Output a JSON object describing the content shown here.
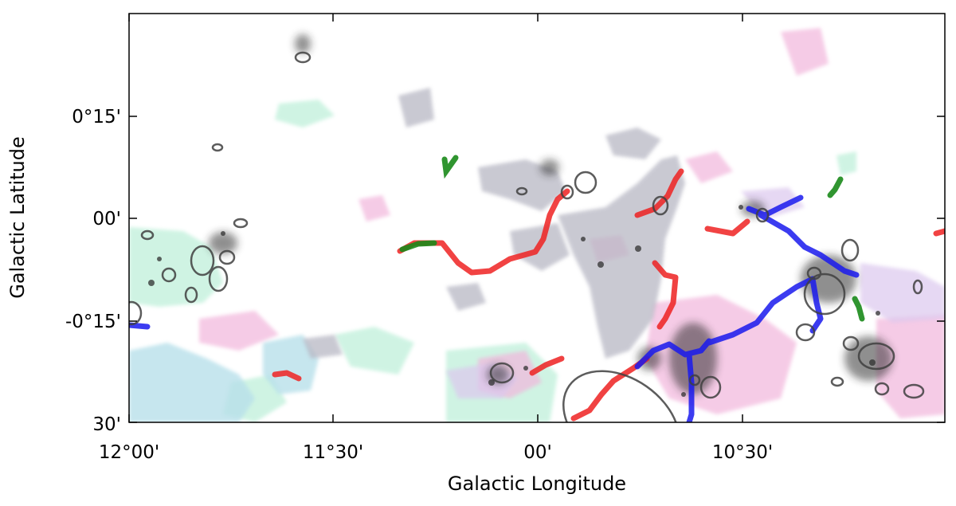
{
  "figure": {
    "xlabel": "Galactic Longitude",
    "ylabel": "Galactic Latitude",
    "x_ticks": [
      "12°00'",
      "11°30'",
      "00'",
      "10°30'"
    ],
    "y_ticks": [
      "0°15'",
      "00'",
      "-0°15'",
      "30'"
    ]
  },
  "colors": {
    "filament_red": "#ee2222",
    "filament_blue": "#1a1aee",
    "filament_green": "#1a8a1a",
    "clump_outline": "#404040",
    "emission_gray": "#b8b8c4",
    "emission_pink": "#f2b6dc",
    "emission_mint": "#bff0da",
    "emission_cyan": "#b8e0ea"
  }
}
